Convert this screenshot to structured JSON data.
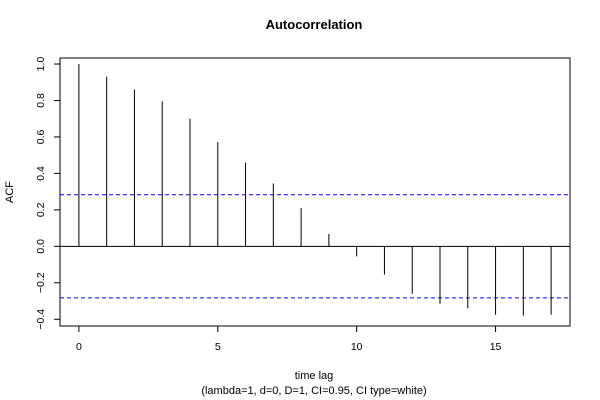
{
  "chart_data": {
    "type": "bar",
    "title": "Autocorrelation",
    "xlabel": "time lag",
    "subtitle": "(lambda=1, d=0, D=1, CI=0.95, CI type=white)",
    "ylabel": "ACF",
    "xlim": [
      -0.68,
      17.68
    ],
    "ylim": [
      -0.437,
      1.033
    ],
    "x_ticks": [
      0,
      5,
      10,
      15
    ],
    "x_tick_labels": [
      "0",
      "5",
      "10",
      "15"
    ],
    "y_ticks": [
      -0.4,
      -0.2,
      0.0,
      0.2,
      0.4,
      0.6,
      0.8,
      1.0
    ],
    "y_tick_labels": [
      "−0.4",
      "−0.2",
      "0.0",
      "0.2",
      "0.4",
      "0.6",
      "0.8",
      "1.0"
    ],
    "lags": [
      0,
      1,
      2,
      3,
      4,
      5,
      6,
      7,
      8,
      9,
      10,
      11,
      12,
      13,
      14,
      15,
      16,
      17
    ],
    "values": [
      1.0,
      0.93,
      0.86,
      0.795,
      0.7,
      0.572,
      0.46,
      0.345,
      0.21,
      0.068,
      -0.055,
      -0.155,
      -0.26,
      -0.315,
      -0.34,
      -0.375,
      -0.38,
      -0.375
    ],
    "confidence_bounds": [
      0.283,
      -0.283
    ],
    "ci_color": "#0000ff",
    "grid": false
  }
}
